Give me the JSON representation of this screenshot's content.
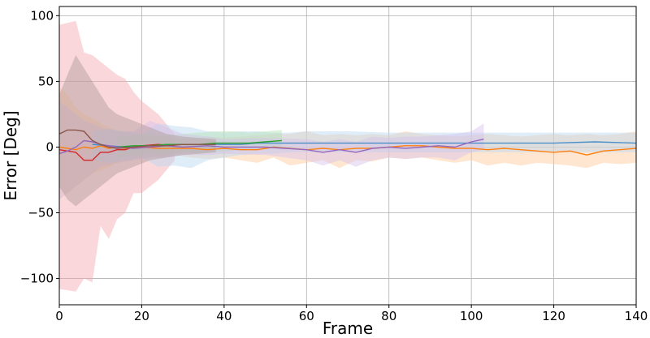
{
  "chart_data": {
    "type": "line",
    "title": "",
    "xlabel": "Frame",
    "ylabel": "Error [Deg]",
    "xlim": [
      0,
      140
    ],
    "ylim": [
      -120,
      107
    ],
    "xticks": [
      0,
      20,
      40,
      60,
      80,
      100,
      120,
      140
    ],
    "yticks": [
      -100,
      -50,
      0,
      50,
      100
    ],
    "grid": true,
    "legend": "none",
    "series": [
      {
        "color": "#f4a6ad",
        "x": [
          0,
          4,
          6,
          8,
          10,
          12,
          14,
          16,
          18,
          20,
          24,
          28
        ],
        "mean": [
          -2,
          -4,
          -10,
          -10,
          -4,
          -4,
          -2,
          -2,
          0,
          1,
          2,
          1
        ],
        "lower": [
          -108,
          -110,
          -100,
          -103,
          -60,
          -70,
          -55,
          -50,
          -35,
          -35,
          -25,
          -10
        ],
        "upper": [
          93,
          96,
          72,
          70,
          65,
          60,
          55,
          52,
          42,
          35,
          25,
          10
        ],
        "band_color": "#f4a6ad",
        "line_color": "#d62728"
      },
      {
        "color": "#f7a970",
        "x": [
          0,
          2,
          4,
          6,
          8,
          10,
          12,
          14,
          16,
          20,
          24,
          28,
          32,
          36,
          40,
          44,
          48,
          52,
          56,
          60,
          64,
          68,
          72,
          76,
          80,
          84,
          88,
          92,
          96,
          100,
          104,
          108,
          112,
          116,
          120,
          124,
          128,
          132,
          136,
          140
        ],
        "mean": [
          0,
          -1,
          -2,
          0,
          -1,
          1,
          -1,
          0,
          -1,
          0,
          -1,
          -1,
          -1,
          -2,
          -1,
          -2,
          -2,
          0,
          -1,
          -2,
          -1,
          -2,
          -1,
          -1,
          0,
          1,
          1,
          0,
          -1,
          -1,
          -2,
          -1,
          -2,
          -3,
          -4,
          -3,
          -6,
          -3,
          -2,
          -1
        ],
        "lower": [
          -40,
          -35,
          -30,
          -25,
          -20,
          -18,
          -15,
          -12,
          -10,
          -8,
          -7,
          -6,
          -8,
          -9,
          -8,
          -10,
          -12,
          -8,
          -14,
          -12,
          -10,
          -16,
          -10,
          -11,
          -8,
          -9,
          -8,
          -10,
          -12,
          -10,
          -14,
          -12,
          -14,
          -12,
          -13,
          -14,
          -16,
          -12,
          -13,
          -12
        ],
        "upper": [
          45,
          40,
          30,
          25,
          22,
          18,
          15,
          12,
          11,
          10,
          8,
          7,
          6,
          8,
          7,
          8,
          9,
          10,
          10,
          12,
          9,
          10,
          9,
          10,
          9,
          12,
          10,
          9,
          8,
          9,
          10,
          9,
          8,
          9,
          10,
          9,
          10,
          9,
          10,
          12
        ],
        "band_color": "#ffc89a",
        "line_color": "#ff7f0e"
      },
      {
        "color": "#bcd5ef",
        "x": [
          8,
          12,
          16,
          20,
          24,
          28,
          32,
          36,
          40,
          44,
          48,
          52,
          56,
          60,
          70,
          80,
          90,
          100,
          110,
          120,
          130,
          140
        ],
        "mean": [
          2,
          1,
          0,
          1,
          1,
          2,
          2,
          2,
          2,
          2,
          3,
          3,
          3,
          3,
          3,
          3,
          3,
          3,
          3,
          3,
          4,
          3
        ],
        "lower": [
          -10,
          -12,
          -10,
          -8,
          -15,
          -14,
          -16,
          -10,
          -8,
          -6,
          -5,
          -5,
          -4,
          -4,
          -4,
          -4,
          -4,
          -4,
          -4,
          -4,
          -4,
          -4
        ],
        "upper": [
          12,
          14,
          12,
          10,
          18,
          16,
          15,
          12,
          11,
          12,
          12,
          11,
          11,
          12,
          12,
          11,
          11,
          11,
          11,
          11,
          11,
          11
        ],
        "band_color": "#b9d6f2",
        "line_color": "#4a8fc8"
      },
      {
        "color": "#a9dca9",
        "x": [
          14,
          18,
          22,
          26,
          30,
          34,
          38,
          42,
          46,
          50,
          54
        ],
        "mean": [
          0,
          1,
          1,
          2,
          2,
          2,
          3,
          3,
          3,
          4,
          5
        ],
        "lower": [
          -8,
          -6,
          -5,
          -6,
          -4,
          -5,
          -4,
          -3,
          -2,
          -1,
          0
        ],
        "upper": [
          8,
          9,
          10,
          9,
          10,
          11,
          12,
          12,
          11,
          12,
          13
        ],
        "band_color": "#b3e0b3",
        "line_color": "#2ca02c"
      },
      {
        "color": "#cdb8e6",
        "x": [
          0,
          2,
          4,
          6,
          8,
          10,
          14,
          18,
          22,
          26,
          30,
          36,
          40,
          50,
          60,
          64,
          68,
          72,
          76,
          80,
          84,
          88,
          92,
          96,
          100,
          103
        ],
        "mean": [
          -5,
          -3,
          0,
          5,
          4,
          2,
          0,
          -1,
          0,
          1,
          0,
          1,
          0,
          0,
          -2,
          -4,
          -2,
          -4,
          -1,
          0,
          -1,
          0,
          1,
          0,
          4,
          6
        ],
        "lower": [
          -40,
          -35,
          -30,
          -25,
          -20,
          -15,
          -12,
          -10,
          -8,
          -8,
          -6,
          -6,
          -5,
          -6,
          -10,
          -14,
          -10,
          -15,
          -10,
          -8,
          -9,
          -8,
          -8,
          -10,
          -4,
          -2
        ],
        "upper": [
          35,
          30,
          25,
          20,
          18,
          15,
          12,
          12,
          20,
          15,
          10,
          8,
          6,
          7,
          6,
          4,
          6,
          4,
          8,
          7,
          8,
          8,
          9,
          10,
          12,
          18
        ],
        "band_color": "#d4c2ea",
        "line_color": "#9467bd"
      },
      {
        "color": "#a58a86",
        "x": [
          0,
          2,
          4,
          6,
          8,
          10,
          12,
          14,
          18,
          22,
          26,
          30,
          34,
          38
        ],
        "mean": [
          10,
          13,
          13,
          12,
          5,
          2,
          0,
          -1,
          0,
          1,
          1,
          2,
          2,
          2
        ],
        "lower": [
          -30,
          -40,
          -45,
          -40,
          -35,
          -30,
          -25,
          -20,
          -15,
          -10,
          -8,
          -6,
          -5,
          -4
        ],
        "upper": [
          40,
          55,
          70,
          60,
          50,
          40,
          30,
          25,
          20,
          15,
          10,
          8,
          7,
          6
        ],
        "band_color": "#b09a96",
        "line_color": "#8c564b"
      }
    ]
  }
}
